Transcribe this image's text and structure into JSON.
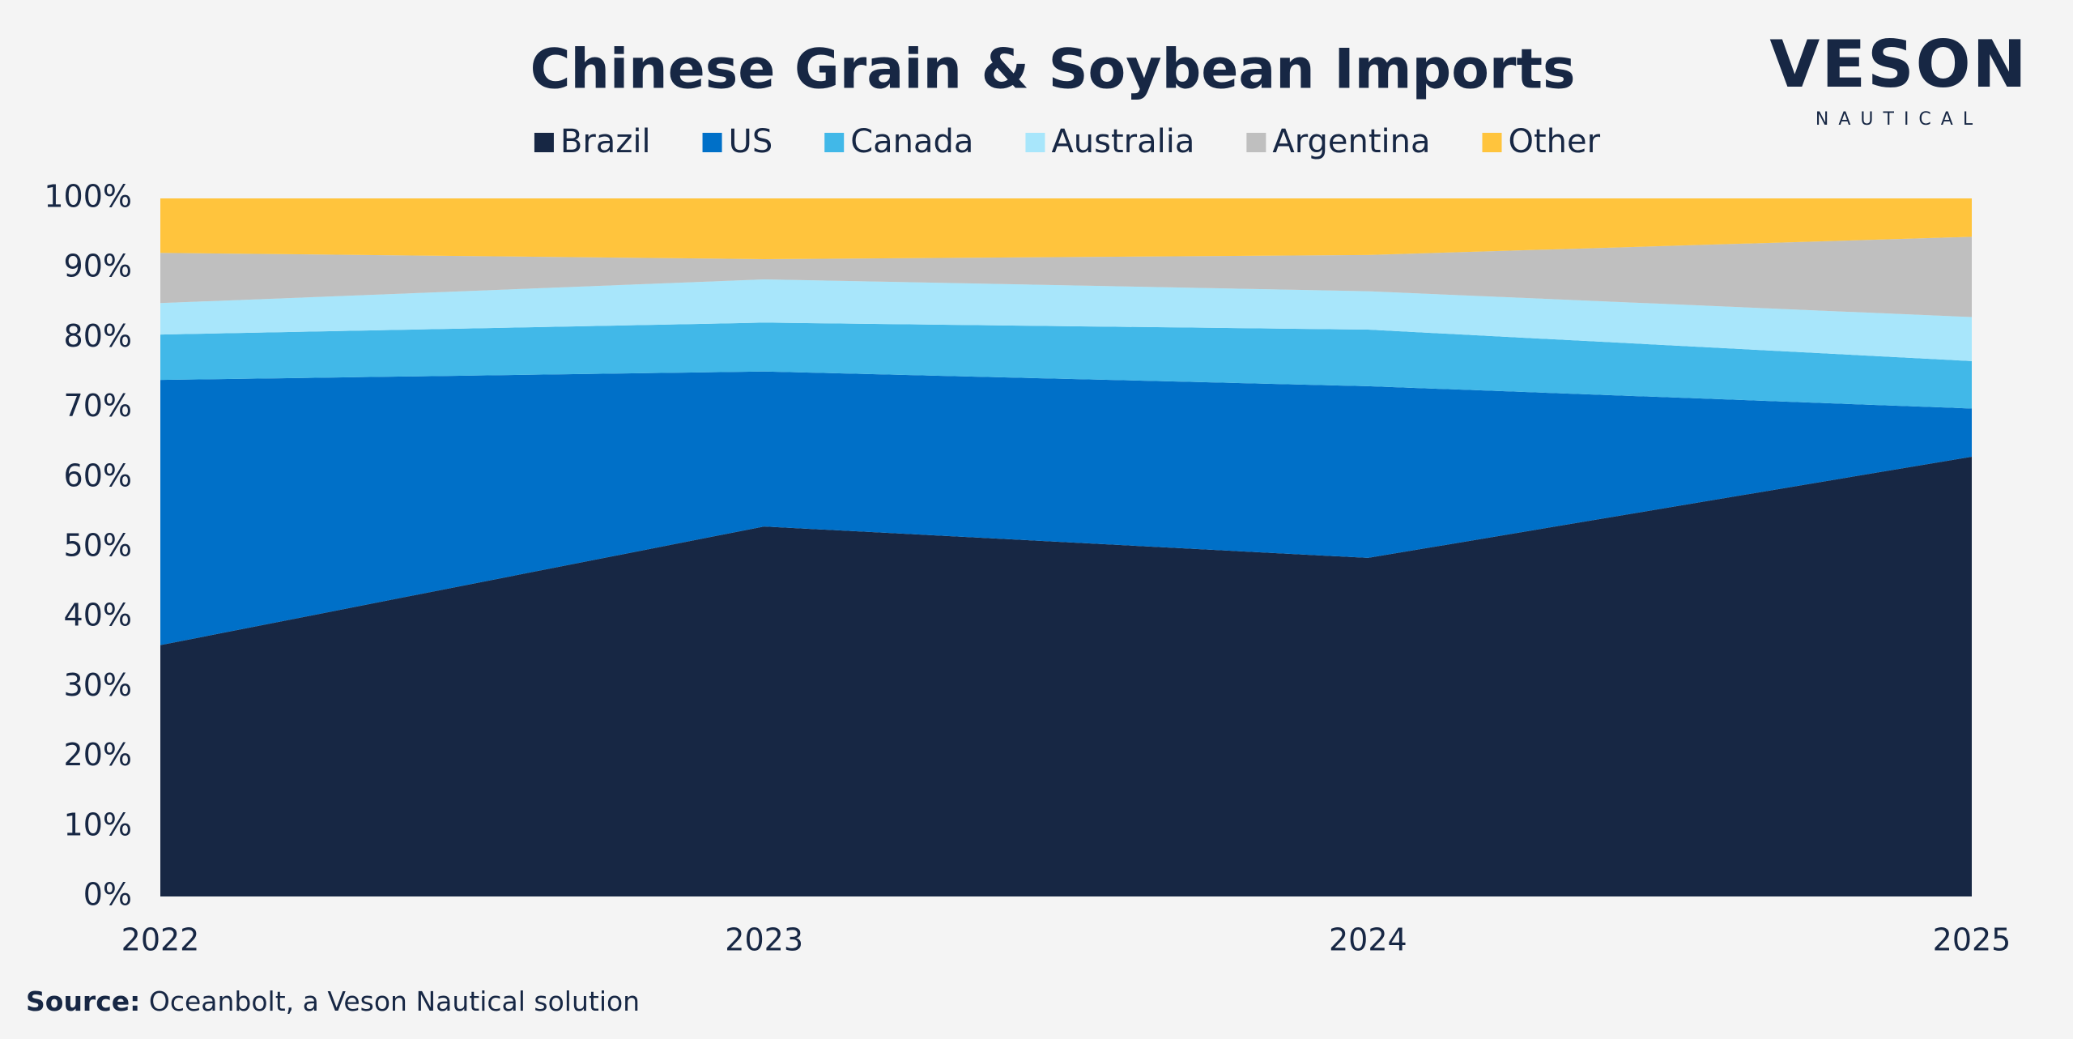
{
  "chart_data": {
    "type": "stacked_area",
    "title": "Chinese Grain & Soybean Imports",
    "categories": [
      "2022",
      "2023",
      "2024",
      "2025"
    ],
    "series": [
      {
        "name": "Brazil",
        "color": "#172744",
        "values": [
          36,
          53,
          48.5,
          63
        ]
      },
      {
        "name": "US",
        "color": "#0070c8",
        "values": [
          38,
          22.2,
          24.6,
          6.9
        ]
      },
      {
        "name": "Canada",
        "color": "#41b8e8",
        "values": [
          6.5,
          7,
          8.1,
          6.8
        ]
      },
      {
        "name": "Australia",
        "color": "#a8e6fb",
        "values": [
          4.5,
          6.2,
          5.5,
          6.3
        ]
      },
      {
        "name": "Argentina",
        "color": "#bfbfbf",
        "values": [
          7.2,
          2.9,
          5.2,
          11.5
        ]
      },
      {
        "name": "Other",
        "color": "#ffc43d",
        "values": [
          7.8,
          8.7,
          8.1,
          5.5
        ]
      }
    ],
    "ylim": [
      0,
      100
    ],
    "yticks": [
      {
        "value": 0,
        "label": "0%"
      },
      {
        "value": 10,
        "label": "10%"
      },
      {
        "value": 20,
        "label": "20%"
      },
      {
        "value": 30,
        "label": "30%"
      },
      {
        "value": 40,
        "label": "40%"
      },
      {
        "value": 50,
        "label": "50%"
      },
      {
        "value": 60,
        "label": "60%"
      },
      {
        "value": 70,
        "label": "70%"
      },
      {
        "value": 80,
        "label": "80%"
      },
      {
        "value": 90,
        "label": "90%"
      },
      {
        "value": 100,
        "label": "100%"
      }
    ],
    "legend_position": "top",
    "source_label": "Source:",
    "source": "Oceanbolt, a Veson Nautical solution"
  },
  "logo": {
    "name": "VESON",
    "tagline": "NAUTICAL"
  }
}
